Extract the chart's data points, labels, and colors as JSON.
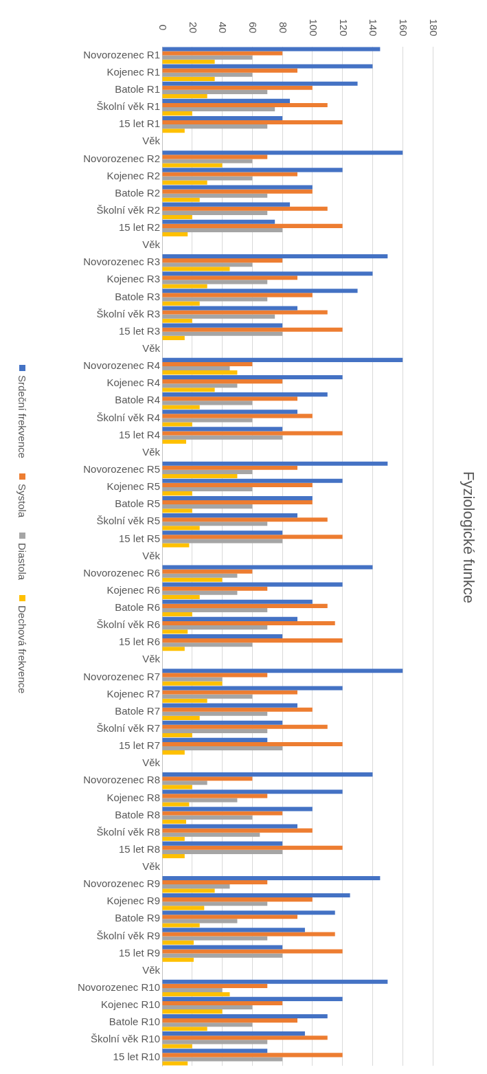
{
  "chart_data": {
    "type": "bar",
    "orientation": "horizontal",
    "title": "Fyziologické funkce",
    "categories": [
      "Novorozenec R1",
      "Kojenec R1",
      "Batole R1",
      "Školní věk R1",
      "15 let R1",
      "Věk",
      "Novorozenec R2",
      "Kojenec R2",
      "Batole R2",
      "Školní věk R2",
      "15 let R2",
      "Věk",
      "Novorozenec R3",
      "Kojenec R3",
      "Batole R3",
      "Školní věk R3",
      "15 let R3",
      "Věk",
      "Novorozenec R4",
      "Kojenec R4",
      "Batole R4",
      "Školní věk R4",
      "15 let R4",
      "Věk",
      "Novorozenec R5",
      "Kojenec R5",
      "Batole R5",
      "Školní věk R5",
      "15 let R5",
      "Věk",
      "Novorozenec R6",
      "Kojenec R6",
      "Batole R6",
      "Školní věk R6",
      "15 let R6",
      "Věk",
      "Novorozenec R7",
      "Kojenec R7",
      "Batole R7",
      "Školní věk R7",
      "15 let R7",
      "Věk",
      "Novorozenec R8",
      "Kojenec R8",
      "Batole R8",
      "Školní věk R8",
      "15 let R8",
      "Věk",
      "Novorozenec R9",
      "Kojenec R9",
      "Batole R9",
      "Školní věk R9",
      "15 let R9",
      "Věk",
      "Novorozenec R10",
      "Kojenec R10",
      "Batole R10",
      "Školní věk R10",
      "15 let R10"
    ],
    "series": [
      {
        "name": "Srdeční frekvence",
        "color": "#4472c4",
        "values": [
          145,
          140,
          130,
          85,
          80,
          null,
          160,
          120,
          100,
          85,
          75,
          null,
          150,
          140,
          130,
          90,
          80,
          null,
          160,
          120,
          110,
          90,
          80,
          null,
          150,
          120,
          100,
          90,
          80,
          null,
          140,
          120,
          100,
          90,
          80,
          null,
          160,
          120,
          90,
          80,
          70,
          null,
          140,
          120,
          100,
          90,
          80,
          null,
          145,
          125,
          115,
          95,
          80,
          null,
          150,
          120,
          110,
          95,
          70
        ]
      },
      {
        "name": "Systola",
        "color": "#ed7d31",
        "values": [
          80,
          90,
          100,
          110,
          120,
          null,
          70,
          90,
          100,
          110,
          120,
          null,
          80,
          90,
          100,
          110,
          120,
          null,
          60,
          80,
          90,
          100,
          120,
          null,
          90,
          100,
          100,
          110,
          120,
          null,
          60,
          70,
          110,
          115,
          120,
          null,
          70,
          90,
          100,
          110,
          120,
          null,
          60,
          70,
          80,
          100,
          120,
          null,
          70,
          100,
          90,
          115,
          120,
          null,
          70,
          80,
          90,
          110,
          120
        ]
      },
      {
        "name": "Diastola",
        "color": "#a5a5a5",
        "values": [
          60,
          60,
          70,
          75,
          70,
          null,
          60,
          60,
          70,
          70,
          80,
          null,
          60,
          70,
          70,
          75,
          80,
          null,
          45,
          50,
          60,
          60,
          80,
          null,
          60,
          60,
          60,
          70,
          80,
          null,
          50,
          50,
          70,
          70,
          60,
          null,
          40,
          60,
          70,
          70,
          80,
          null,
          30,
          50,
          60,
          65,
          80,
          null,
          45,
          70,
          50,
          70,
          80,
          null,
          40,
          60,
          60,
          70,
          80
        ]
      },
      {
        "name": "Dechová frekvence",
        "color": "#ffc000",
        "values": [
          35,
          35,
          30,
          20,
          15,
          null,
          40,
          30,
          25,
          20,
          17,
          null,
          45,
          30,
          25,
          20,
          15,
          null,
          50,
          35,
          25,
          20,
          16,
          null,
          50,
          20,
          20,
          25,
          18,
          null,
          40,
          25,
          20,
          17,
          15,
          null,
          40,
          30,
          25,
          20,
          15,
          null,
          20,
          18,
          16,
          15,
          15,
          null,
          35,
          28,
          25,
          21,
          21,
          null,
          45,
          40,
          30,
          20,
          17
        ]
      }
    ],
    "xlim": [
      0,
      180
    ],
    "xticks": [
      0,
      20,
      40,
      60,
      80,
      100,
      120,
      140,
      160,
      180
    ],
    "grid": "x",
    "legend": "left"
  }
}
